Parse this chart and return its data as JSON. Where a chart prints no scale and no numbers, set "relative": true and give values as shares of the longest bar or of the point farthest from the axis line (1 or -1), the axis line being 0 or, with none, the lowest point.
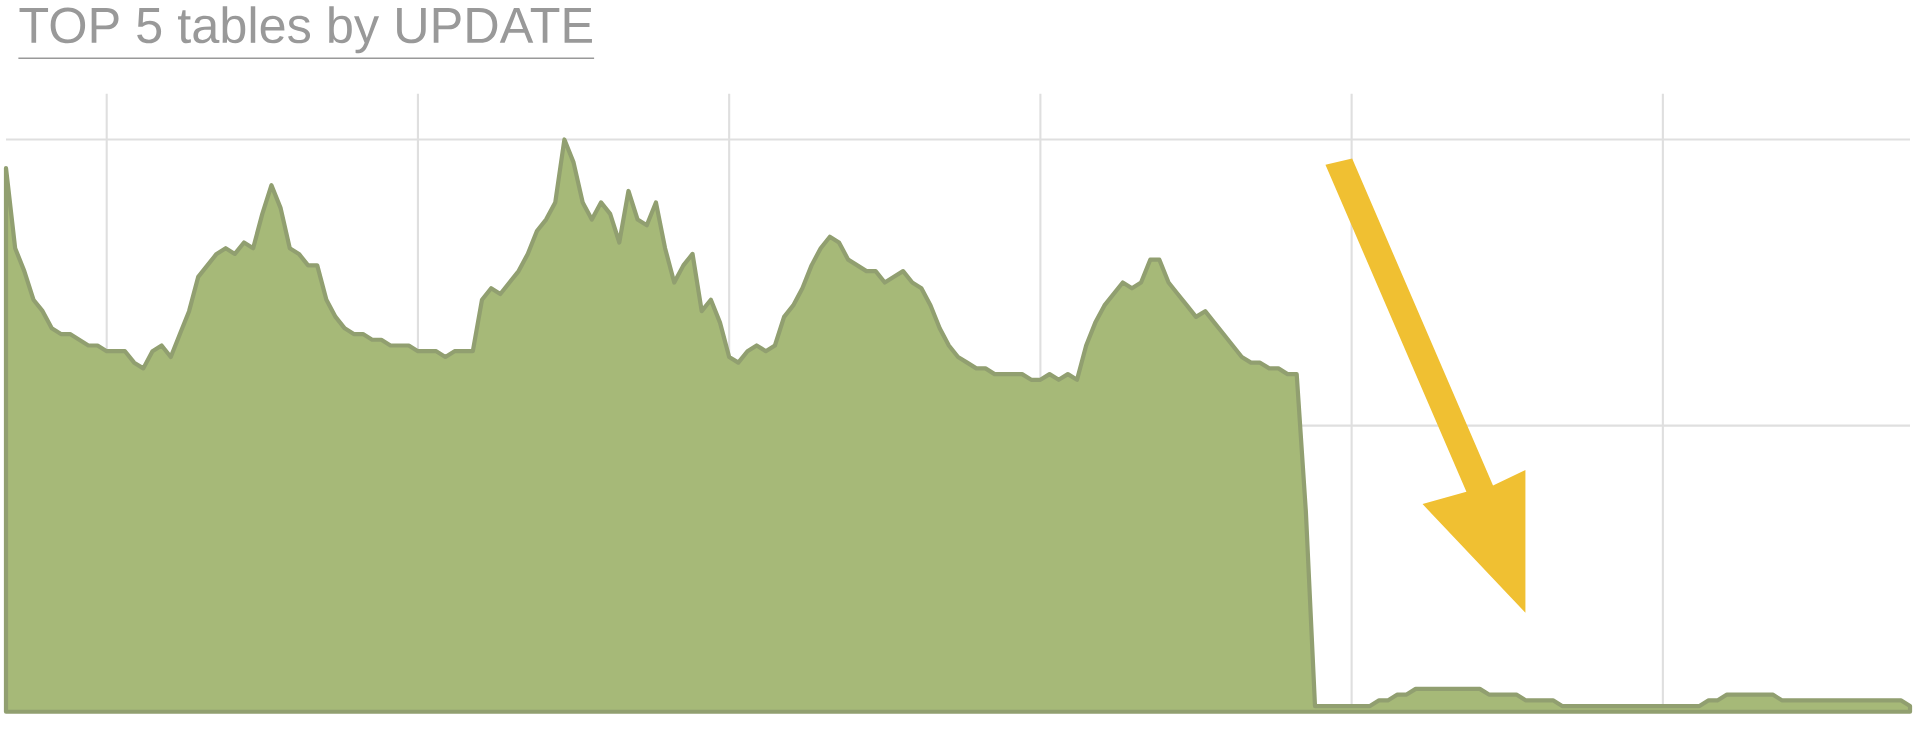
{
  "chart_data": {
    "type": "area",
    "relative": true,
    "title": "TOP 5 tables by UPDATE",
    "grid": true,
    "color": "#a6b978",
    "categories": [
      null,
      null,
      null,
      null,
      null,
      null,
      null,
      null,
      null,
      null,
      null,
      null,
      null,
      null,
      null,
      null,
      null,
      null,
      null,
      null,
      null,
      null,
      null,
      null,
      null,
      null,
      null,
      null,
      null,
      null,
      null,
      null,
      null,
      null,
      null,
      null,
      null,
      null,
      null,
      null,
      null,
      null,
      null,
      null,
      null,
      null,
      null,
      null,
      null,
      null,
      null,
      null,
      null,
      null,
      null,
      null,
      null,
      null,
      null,
      null,
      null,
      null,
      null,
      null,
      null,
      null,
      null,
      null,
      null,
      null,
      null,
      null,
      null,
      null,
      null,
      null,
      null,
      null,
      null,
      null,
      null,
      null,
      null,
      null,
      null,
      null,
      null,
      null,
      null,
      null,
      null,
      null,
      null,
      null,
      null,
      null,
      null,
      null,
      null,
      null,
      null,
      null,
      null,
      null,
      null,
      null,
      null,
      null,
      null,
      null,
      null,
      null,
      null,
      null,
      null,
      null,
      null,
      null,
      null,
      null,
      null,
      null,
      null,
      null,
      null,
      null,
      null,
      null,
      null,
      null,
      null,
      null,
      null,
      null,
      null,
      null,
      null,
      null,
      null,
      null,
      null,
      null,
      null,
      null,
      null,
      null,
      null,
      null,
      null,
      null,
      null,
      null,
      null,
      null,
      null,
      null,
      null,
      null,
      null,
      null,
      null,
      null,
      null,
      null,
      null,
      null,
      null,
      null,
      null,
      null,
      null,
      null,
      null,
      null,
      null,
      null,
      null,
      null,
      null,
      null,
      null,
      null,
      null,
      null,
      null,
      null,
      null,
      null,
      null,
      null,
      null,
      null,
      null,
      null,
      null,
      null,
      null,
      null,
      null,
      null,
      null,
      null,
      null,
      null,
      null,
      null,
      null,
      null,
      null
    ],
    "values": [
      0.95,
      0.81,
      0.77,
      0.72,
      0.7,
      0.67,
      0.66,
      0.66,
      0.65,
      0.64,
      0.64,
      0.63,
      0.63,
      0.63,
      0.61,
      0.6,
      0.63,
      0.64,
      0.62,
      0.66,
      0.7,
      0.76,
      0.78,
      0.8,
      0.81,
      0.8,
      0.82,
      0.81,
      0.87,
      0.92,
      0.88,
      0.81,
      0.8,
      0.78,
      0.78,
      0.72,
      0.69,
      0.67,
      0.66,
      0.66,
      0.65,
      0.65,
      0.64,
      0.64,
      0.64,
      0.63,
      0.63,
      0.63,
      0.62,
      0.63,
      0.63,
      0.63,
      0.72,
      0.74,
      0.73,
      0.75,
      0.77,
      0.8,
      0.84,
      0.86,
      0.89,
      1.0,
      0.96,
      0.89,
      0.86,
      0.89,
      0.87,
      0.82,
      0.91,
      0.86,
      0.85,
      0.89,
      0.81,
      0.75,
      0.78,
      0.8,
      0.7,
      0.72,
      0.68,
      0.62,
      0.61,
      0.63,
      0.64,
      0.63,
      0.64,
      0.69,
      0.71,
      0.74,
      0.78,
      0.81,
      0.83,
      0.82,
      0.79,
      0.78,
      0.77,
      0.77,
      0.75,
      0.76,
      0.77,
      0.75,
      0.74,
      0.71,
      0.67,
      0.64,
      0.62,
      0.61,
      0.6,
      0.6,
      0.59,
      0.59,
      0.59,
      0.59,
      0.58,
      0.58,
      0.59,
      0.58,
      0.59,
      0.58,
      0.64,
      0.68,
      0.71,
      0.73,
      0.75,
      0.74,
      0.75,
      0.79,
      0.79,
      0.75,
      0.73,
      0.71,
      0.69,
      0.7,
      0.68,
      0.66,
      0.64,
      0.62,
      0.61,
      0.61,
      0.6,
      0.6,
      0.59,
      0.59,
      0.35,
      0.01,
      0.01,
      0.01,
      0.01,
      0.01,
      0.01,
      0.01,
      0.02,
      0.02,
      0.03,
      0.03,
      0.04,
      0.04,
      0.04,
      0.04,
      0.04,
      0.04,
      0.04,
      0.04,
      0.03,
      0.03,
      0.03,
      0.03,
      0.02,
      0.02,
      0.02,
      0.02,
      0.01,
      0.01,
      0.01,
      0.01,
      0.01,
      0.01,
      0.01,
      0.01,
      0.01,
      0.01,
      0.01,
      0.01,
      0.01,
      0.01,
      0.01,
      0.01,
      0.02,
      0.02,
      0.03,
      0.03,
      0.03,
      0.03,
      0.03,
      0.03,
      0.02,
      0.02,
      0.02,
      0.02,
      0.02,
      0.02,
      0.02,
      0.02,
      0.02,
      0.02,
      0.02,
      0.02,
      0.02,
      0.02,
      0.01
    ]
  }
}
